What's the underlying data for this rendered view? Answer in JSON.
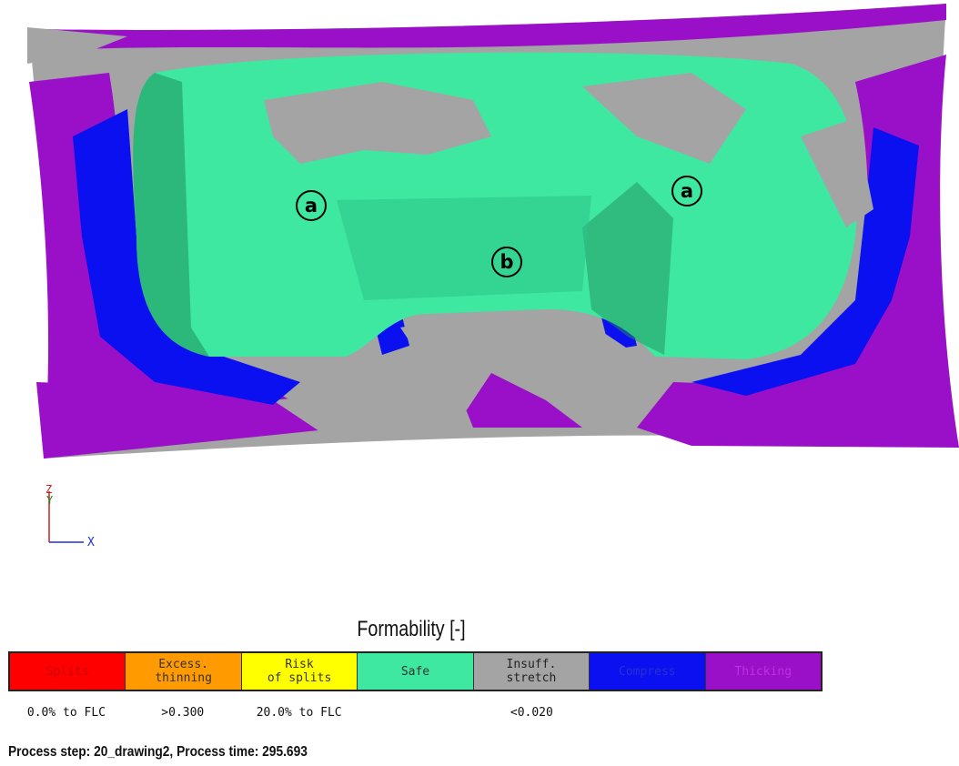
{
  "callouts": [
    {
      "name": "callout-a-left",
      "label": "a"
    },
    {
      "name": "callout-b",
      "label": "b"
    },
    {
      "name": "callout-a-right",
      "label": "a"
    }
  ],
  "axis": {
    "z": "Z",
    "y": "Y",
    "x": "X"
  },
  "legend": {
    "title": "Formability [-]",
    "segments": [
      {
        "label": "Splits",
        "color": "#ff0000",
        "text_color": "#c80000",
        "value": "0.0% to FLC"
      },
      {
        "label": "Excess.\nthinning",
        "color": "#ff9a00",
        "text_color": "#333333",
        "value": ">0.300"
      },
      {
        "label": "Risk\nof splits",
        "color": "#ffff00",
        "text_color": "#333333",
        "value": "20.0% to FLC"
      },
      {
        "label": "Safe",
        "color": "#3ee8a0",
        "text_color": "#333333",
        "value": ""
      },
      {
        "label": "Insuff.\nstretch",
        "color": "#a4a4a4",
        "text_color": "#222222",
        "value": "<0.020"
      },
      {
        "label": "Compress",
        "color": "#0a10f0",
        "text_color": "#2a30d0",
        "value": ""
      },
      {
        "label": "Thicking",
        "color": "#9a10c8",
        "text_color": "#c030e0",
        "value": ""
      }
    ]
  },
  "process": {
    "text": "Process step: 20_drawing2, Process time: 295.693"
  },
  "colors": {
    "safe": "#3ee8a0",
    "insuff": "#a4a4a4",
    "compress": "#0a10f0",
    "thicking": "#9a10c8"
  }
}
